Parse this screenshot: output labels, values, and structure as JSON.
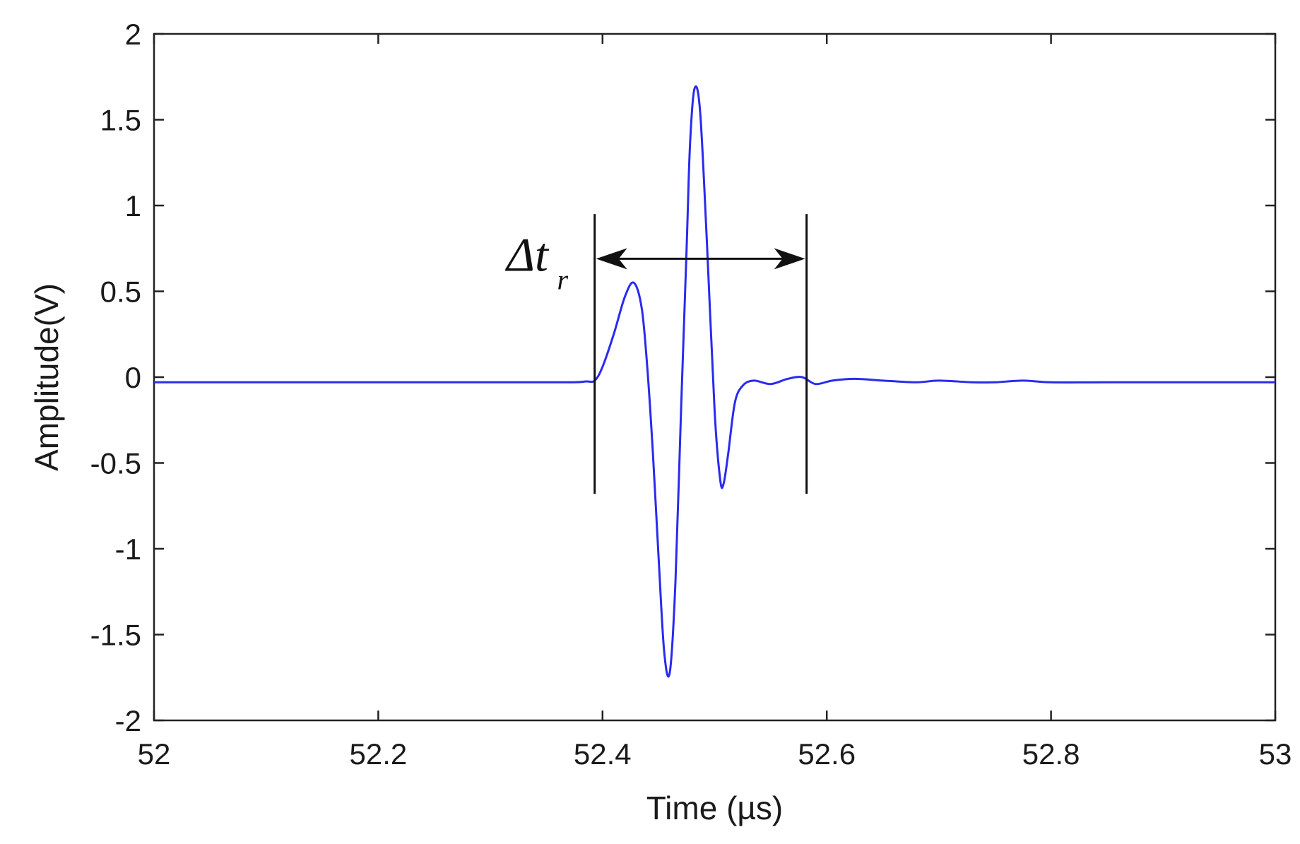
{
  "chart_data": {
    "type": "line",
    "title": "",
    "xlabel": "Time (µs)",
    "ylabel": "Amplitude(V)",
    "xlim": [
      52,
      53
    ],
    "ylim": [
      -2,
      2
    ],
    "x_ticks": [
      52,
      52.2,
      52.4,
      52.6,
      52.8,
      53
    ],
    "x_tick_labels": [
      "52",
      "52.2",
      "52.4",
      "52.6",
      "52.8",
      "53"
    ],
    "y_ticks": [
      2,
      1.5,
      1,
      0.5,
      0,
      -0.5,
      -1,
      -1.5,
      -2
    ],
    "y_tick_labels": [
      "2",
      "1.5",
      "1",
      "0.5",
      "0",
      "-0.5",
      "-1",
      "-1.5",
      "-2"
    ],
    "grid": false,
    "line_color": "#2a2af0",
    "series": [
      {
        "x": [
          52.0,
          52.1,
          52.2,
          52.3,
          52.37,
          52.385,
          52.393,
          52.4,
          52.41,
          52.42,
          52.428,
          52.435,
          52.44,
          52.445,
          52.45,
          52.455,
          52.46,
          52.465,
          52.47,
          52.475,
          52.478,
          52.482,
          52.487,
          52.493,
          52.5,
          52.505,
          52.508,
          52.512,
          52.518,
          52.525,
          52.535,
          52.55,
          52.565,
          52.578,
          52.59,
          52.605,
          52.625,
          52.65,
          52.68,
          52.7,
          52.73,
          52.75,
          52.775,
          52.8,
          52.85,
          52.9,
          53.0
        ],
        "y": [
          -0.03,
          -0.03,
          -0.03,
          -0.03,
          -0.03,
          -0.025,
          -0.02,
          0.06,
          0.25,
          0.47,
          0.55,
          0.4,
          0.05,
          -0.45,
          -1.05,
          -1.6,
          -1.72,
          -1.2,
          -0.2,
          0.75,
          1.35,
          1.68,
          1.55,
          0.8,
          -0.2,
          -0.6,
          -0.62,
          -0.45,
          -0.15,
          -0.05,
          -0.02,
          -0.04,
          -0.01,
          0.0,
          -0.04,
          -0.02,
          -0.01,
          -0.02,
          -0.03,
          -0.02,
          -0.03,
          -0.03,
          -0.02,
          -0.03,
          -0.03,
          -0.03,
          -0.03
        ]
      }
    ],
    "annotation": {
      "symbol": "Δt",
      "subscript": "r",
      "x_start": 52.393,
      "x_end": 52.582,
      "bracket_y_top": 0.95,
      "bracket_y_bottom": -0.68,
      "arrow_y": 0.69,
      "label_anchor_x": 52.333,
      "label_anchor_y": 0.62
    }
  }
}
